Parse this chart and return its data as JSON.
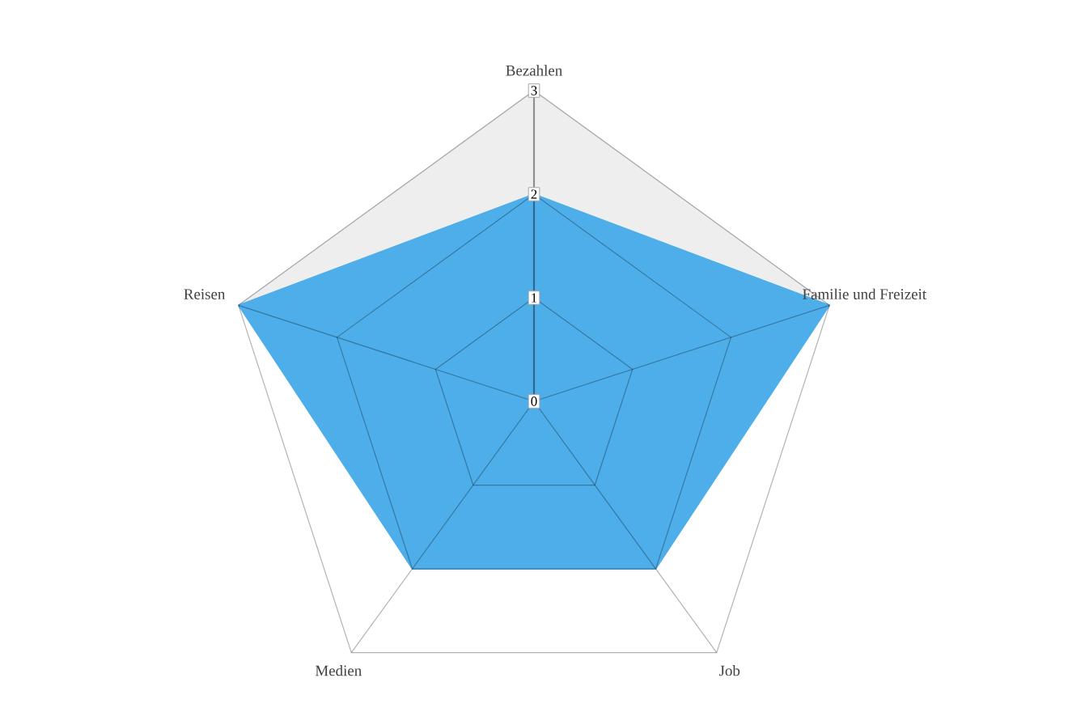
{
  "chart_data": {
    "type": "radar",
    "categories": [
      "Bezahlen",
      "Familie und Freizeit",
      "Job",
      "Medien",
      "Reisen"
    ],
    "ylim": [
      0,
      3
    ],
    "yticks": [
      0,
      1,
      2,
      3
    ],
    "grid": true,
    "series": [
      {
        "color": "#eeeeee",
        "values": [
          3,
          3,
          null,
          null,
          3
        ]
      },
      {
        "color": "#4daeea",
        "values": [
          2,
          3,
          2,
          2,
          3
        ]
      }
    ]
  }
}
